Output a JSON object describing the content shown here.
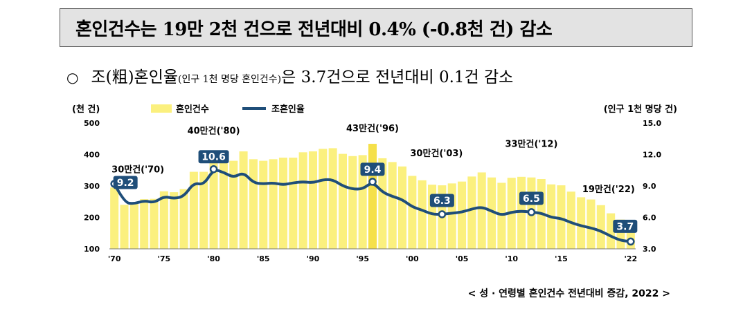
{
  "headline": "혼인건수는 19만 2천 건으로 전년대비 0.4% (-0.8천 건) 감소",
  "subline": {
    "bullet": "○",
    "part1": "조(粗)혼인율",
    "paren": "(인구 1천 명당 혼인건수)",
    "part2": "은 3.7건으로 전년대비 0.1건 감소"
  },
  "caption": "< 성 · 연령별 혼인건수 전년대비 증감, 2022 >",
  "colors": {
    "bar": "#fbf07e",
    "bar_highlight": "#f5e04a",
    "line": "#1f4e79",
    "label_box": "#1f4e79"
  },
  "chart_data": {
    "type": "bar+line",
    "left_axis_label": "(천 건)",
    "right_axis_label": "(인구 1천 명당 건)",
    "legend": {
      "bar": "혼인건수",
      "line": "조혼인율"
    },
    "legend_position": "top",
    "ylim_left": [
      100,
      500
    ],
    "yticks_left": [
      "100",
      "200",
      "300",
      "400",
      "500"
    ],
    "ylim_right": [
      3.0,
      15.0
    ],
    "yticks_right": [
      "3.0",
      "6.0",
      "9.0",
      "12.0",
      "15.0"
    ],
    "x_tick_labels": [
      "'70",
      "'75",
      "'80",
      "'85",
      "'90",
      "'95",
      "'00",
      "'05",
      "'10",
      "'15",
      "'22"
    ],
    "x_tick_years": [
      1970,
      1975,
      1980,
      1985,
      1990,
      1995,
      2000,
      2005,
      2010,
      2015,
      2022
    ],
    "years": [
      1970,
      1971,
      1972,
      1973,
      1974,
      1975,
      1976,
      1977,
      1978,
      1979,
      1980,
      1981,
      1982,
      1983,
      1984,
      1985,
      1986,
      1987,
      1988,
      1989,
      1990,
      1991,
      1992,
      1993,
      1994,
      1995,
      1996,
      1997,
      1998,
      1999,
      2000,
      2001,
      2002,
      2003,
      2004,
      2005,
      2006,
      2007,
      2008,
      2009,
      2010,
      2011,
      2012,
      2013,
      2014,
      2015,
      2016,
      2017,
      2018,
      2019,
      2020,
      2021,
      2022
    ],
    "marriages_thousand": [
      295,
      240,
      244,
      258,
      259,
      283,
      280,
      290,
      345,
      345,
      400,
      398,
      380,
      410,
      385,
      380,
      385,
      390,
      390,
      407,
      410,
      418,
      420,
      402,
      395,
      398,
      434,
      388,
      376,
      362,
      332,
      318,
      304,
      302,
      308,
      314,
      330,
      343,
      327,
      310,
      326,
      329,
      327,
      322,
      305,
      302,
      282,
      264,
      257,
      239,
      213,
      193,
      192
    ],
    "crude_rate": [
      9.2,
      7.4,
      7.3,
      7.6,
      7.4,
      8.0,
      7.8,
      8.0,
      9.3,
      9.1,
      10.6,
      10.3,
      9.8,
      10.3,
      9.3,
      9.2,
      9.3,
      9.1,
      9.3,
      9.4,
      9.3,
      9.6,
      9.6,
      9.0,
      8.7,
      8.7,
      9.4,
      8.4,
      8.0,
      7.7,
      7.0,
      6.7,
      6.3,
      6.3,
      6.4,
      6.5,
      6.8,
      7.0,
      6.6,
      6.2,
      6.5,
      6.6,
      6.5,
      6.4,
      6.0,
      5.9,
      5.5,
      5.2,
      5.0,
      4.7,
      4.2,
      3.8,
      3.7
    ],
    "bar_annotations": [
      {
        "year": 1970,
        "text": "30만건('70)"
      },
      {
        "year": 1980,
        "text": "40만건('80)"
      },
      {
        "year": 1996,
        "text": "43만건('96)"
      },
      {
        "year": 2003,
        "text": "30만건('03)"
      },
      {
        "year": 2012,
        "text": "33만건('12)"
      },
      {
        "year": 2022,
        "text": "19만건('22)"
      }
    ],
    "rate_labels": [
      {
        "year": 1970,
        "text": "9.2"
      },
      {
        "year": 1980,
        "text": "10.6"
      },
      {
        "year": 1996,
        "text": "9.4"
      },
      {
        "year": 2003,
        "text": "6.3"
      },
      {
        "year": 2012,
        "text": "6.5"
      },
      {
        "year": 2022,
        "text": "3.7"
      }
    ]
  }
}
